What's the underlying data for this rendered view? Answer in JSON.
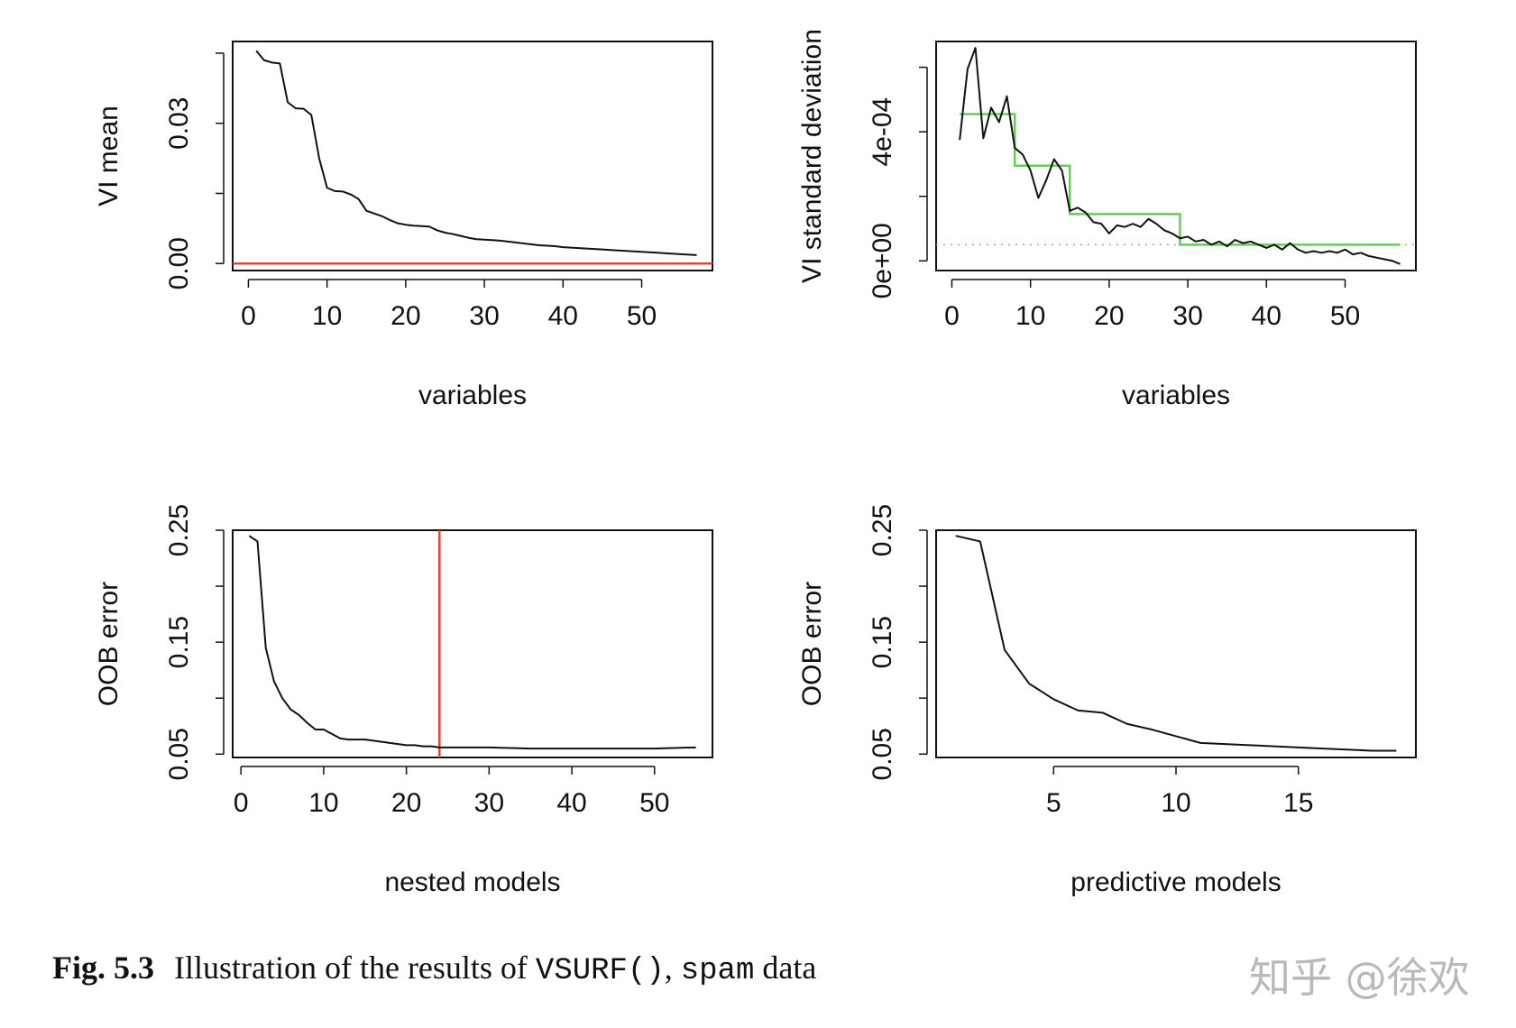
{
  "figure": {
    "caption_label": "Fig. 5.3",
    "caption_text_pre": "Illustration of the results of ",
    "caption_code1": "VSURF()",
    "caption_text_mid": ", ",
    "caption_code2": "spam",
    "caption_text_post": " data",
    "watermark": "知乎 @徐欢"
  },
  "colors": {
    "line": "#111111",
    "threshold_red": "#e0453c",
    "step_green": "#66cc55",
    "dotted_red": "#e88a80"
  },
  "chart_data": [
    {
      "type": "line",
      "ylabel": "VI mean",
      "xlabel": "variables",
      "xlim": [
        -2,
        59
      ],
      "ylim": [
        -0.0015,
        0.0475
      ],
      "xticks": [
        0,
        10,
        20,
        30,
        40,
        50
      ],
      "xtick_labels": [
        "0",
        "10",
        "20",
        "30",
        "40",
        "50"
      ],
      "yticks": [
        0.0,
        0.015,
        0.03,
        0.045
      ],
      "ytick_labels": [
        "0.00",
        "",
        "0.03",
        ""
      ],
      "x": [
        1,
        2,
        3,
        4,
        5,
        6,
        7,
        8,
        9,
        10,
        11,
        12,
        13,
        14,
        15,
        16,
        17,
        18,
        19,
        20,
        21,
        22,
        23,
        24,
        25,
        26,
        27,
        28,
        29,
        30,
        31,
        32,
        33,
        34,
        35,
        36,
        37,
        38,
        39,
        40,
        41,
        42,
        43,
        44,
        45,
        46,
        47,
        48,
        49,
        50,
        51,
        52,
        53,
        54,
        55,
        56,
        57
      ],
      "values": [
        0.0455,
        0.0435,
        0.043,
        0.0428,
        0.0345,
        0.0332,
        0.0331,
        0.0318,
        0.0225,
        0.0162,
        0.0155,
        0.0154,
        0.0148,
        0.0138,
        0.0113,
        0.0107,
        0.0101,
        0.0093,
        0.0086,
        0.0083,
        0.0081,
        0.008,
        0.0079,
        0.0071,
        0.0066,
        0.0063,
        0.0059,
        0.0055,
        0.0052,
        0.0051,
        0.005,
        0.0049,
        0.0047,
        0.0045,
        0.0043,
        0.0041,
        0.0039,
        0.0038,
        0.0037,
        0.0035,
        0.0034,
        0.0033,
        0.0032,
        0.0031,
        0.003,
        0.0029,
        0.0028,
        0.0027,
        0.0026,
        0.0025,
        0.0024,
        0.0023,
        0.0022,
        0.0021,
        0.002,
        0.0019,
        0.0018
      ],
      "hlines": [
        {
          "y": 0.0,
          "color": "red"
        }
      ],
      "grid": false
    },
    {
      "type": "line",
      "ylabel": "VI standard deviation",
      "xlabel": "variables",
      "xlim": [
        -2,
        59
      ],
      "ylim": [
        -3e-05,
        0.00068
      ],
      "xticks": [
        0,
        10,
        20,
        30,
        40,
        50
      ],
      "xtick_labels": [
        "0",
        "10",
        "20",
        "30",
        "40",
        "50"
      ],
      "yticks": [
        0.0,
        0.0002,
        0.0004,
        0.0006
      ],
      "ytick_labels": [
        "0e+00",
        "",
        "4e-04",
        ""
      ],
      "x": [
        1,
        2,
        3,
        4,
        5,
        6,
        7,
        8,
        9,
        10,
        11,
        12,
        13,
        14,
        15,
        16,
        17,
        18,
        19,
        20,
        21,
        22,
        23,
        24,
        25,
        26,
        27,
        28,
        29,
        30,
        31,
        32,
        33,
        34,
        35,
        36,
        37,
        38,
        39,
        40,
        41,
        42,
        43,
        44,
        45,
        46,
        47,
        48,
        49,
        50,
        51,
        52,
        53,
        54,
        55,
        56,
        57
      ],
      "values": [
        0.000375,
        0.000595,
        0.00066,
        0.00038,
        0.000475,
        0.00043,
        0.00051,
        0.00035,
        0.00033,
        0.00028,
        0.000195,
        0.00025,
        0.000315,
        0.00028,
        0.000155,
        0.000165,
        0.00015,
        0.00012,
        0.000115,
        8.5e-05,
        0.00011,
        0.000105,
        0.000115,
        0.000105,
        0.00013,
        0.000115,
        9.5e-05,
        8.5e-05,
        7e-05,
        7.5e-05,
        6e-05,
        6.5e-05,
        5e-05,
        6e-05,
        4.5e-05,
        6.5e-05,
        5.5e-05,
        6e-05,
        5e-05,
        4e-05,
        5e-05,
        3.5e-05,
        5.5e-05,
        3.5e-05,
        2.5e-05,
        3e-05,
        2.5e-05,
        3e-05,
        2.5e-05,
        3.5e-05,
        2e-05,
        2.5e-05,
        1.5e-05,
        1e-05,
        5e-06,
        0.0,
        -1e-05
      ],
      "step_series": {
        "x": [
          1,
          8,
          8,
          15,
          15,
          29,
          29,
          57
        ],
        "values": [
          0.000455,
          0.000455,
          0.000295,
          0.000295,
          0.000145,
          0.000145,
          5e-05,
          5e-05
        ]
      },
      "hline_dotted": 5e-05,
      "grid": false
    },
    {
      "type": "line",
      "ylabel": "OOB error",
      "xlabel": "nested models",
      "xlim": [
        -1,
        57
      ],
      "ylim": [
        0.047,
        0.25
      ],
      "xticks": [
        0,
        10,
        20,
        30,
        40,
        50
      ],
      "xtick_labels": [
        "0",
        "10",
        "20",
        "30",
        "40",
        "50"
      ],
      "yticks": [
        0.05,
        0.1,
        0.15,
        0.2,
        0.25
      ],
      "ytick_labels": [
        "0.05",
        "",
        "0.15",
        "",
        "0.25"
      ],
      "x": [
        1,
        2,
        3,
        4,
        5,
        6,
        7,
        8,
        9,
        10,
        11,
        12,
        13,
        14,
        15,
        16,
        17,
        18,
        19,
        20,
        21,
        22,
        23,
        24,
        25,
        30,
        35,
        40,
        45,
        50,
        55
      ],
      "values": [
        0.245,
        0.24,
        0.145,
        0.115,
        0.1,
        0.09,
        0.085,
        0.078,
        0.072,
        0.072,
        0.068,
        0.064,
        0.063,
        0.063,
        0.063,
        0.062,
        0.061,
        0.06,
        0.059,
        0.058,
        0.058,
        0.057,
        0.057,
        0.056,
        0.056,
        0.056,
        0.055,
        0.055,
        0.055,
        0.055,
        0.056
      ],
      "vlines": [
        {
          "x": 24,
          "color": "red"
        }
      ],
      "grid": false
    },
    {
      "type": "line",
      "ylabel": "OOB error",
      "xlabel": "predictive models",
      "xlim": [
        0.2,
        19.8
      ],
      "ylim": [
        0.047,
        0.25
      ],
      "xticks": [
        5,
        10,
        15
      ],
      "xtick_labels": [
        "5",
        "10",
        "15"
      ],
      "yticks": [
        0.05,
        0.1,
        0.15,
        0.2,
        0.25
      ],
      "ytick_labels": [
        "0.05",
        "",
        "0.15",
        "",
        "0.25"
      ],
      "x": [
        1,
        2,
        3,
        4,
        5,
        6,
        7,
        8,
        9,
        10,
        11,
        12,
        13,
        14,
        15,
        16,
        17,
        18,
        19
      ],
      "values": [
        0.245,
        0.24,
        0.143,
        0.113,
        0.099,
        0.089,
        0.087,
        0.077,
        0.072,
        0.066,
        0.06,
        0.059,
        0.058,
        0.057,
        0.056,
        0.055,
        0.054,
        0.053,
        0.053
      ],
      "grid": false
    }
  ]
}
